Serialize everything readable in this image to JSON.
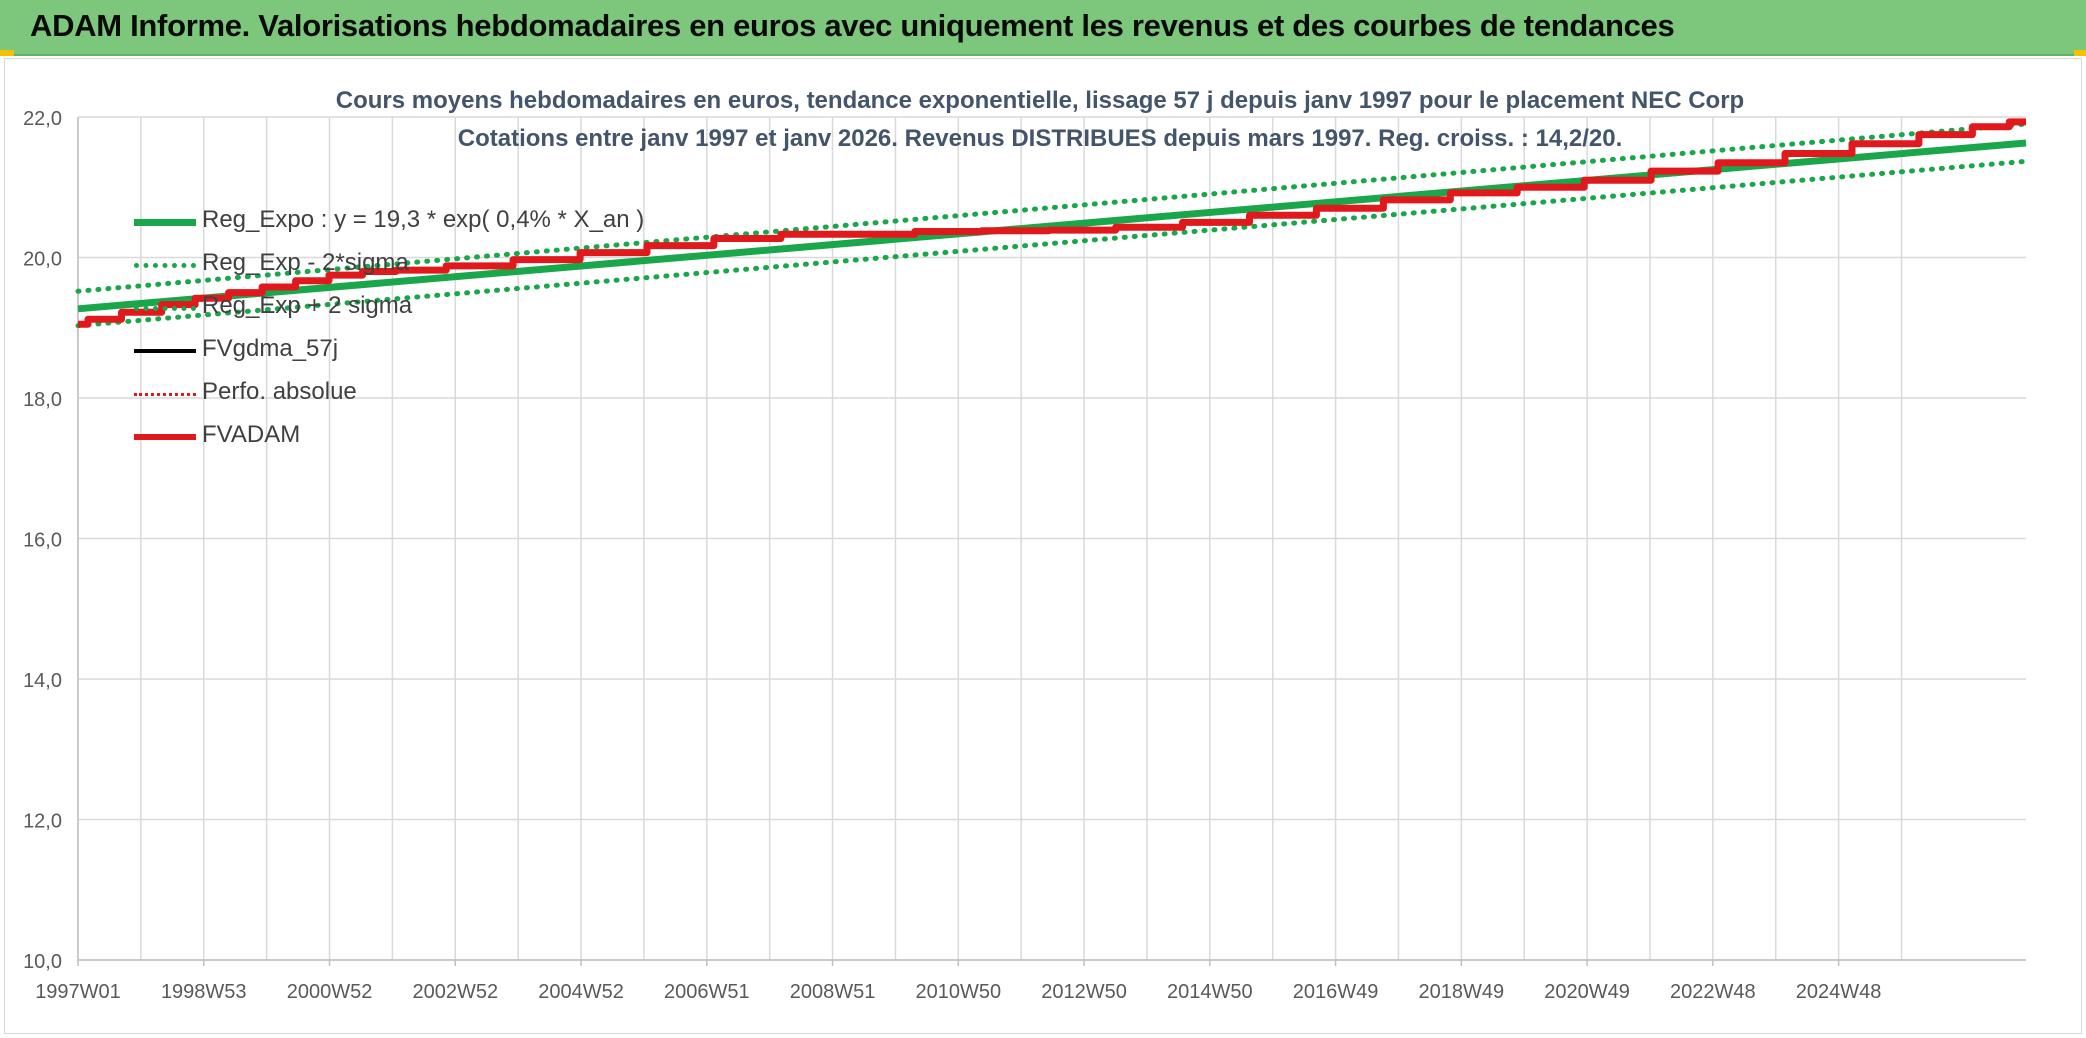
{
  "header": {
    "title": "ADAM Informe. Valorisations hebdomadaires en euros avec uniquement les revenus et des courbes de tendances"
  },
  "colors": {
    "header_bg": "#7dc77d",
    "reg_expo": "#1aa64a",
    "sigma": "#1aa64a",
    "fvgdma": "#000000",
    "perfo": "#e0191c",
    "fvadam": "#e0191c",
    "grid": "#d9d9d9",
    "title_text": "#44546a"
  },
  "chart_data": {
    "type": "line",
    "title": "Cours moyens hebdomadaires en euros, tendance exponentielle, lissage 57 j depuis janv 1997 pour le placement NEC Corp",
    "subtitle": "Cotations entre janv 1997 et janv 2026. Revenus DISTRIBUES depuis mars 1997. Reg. croiss. : 14,2/20.",
    "xlabel": "",
    "ylabel": "",
    "ylim": [
      10,
      22
    ],
    "y_ticks": [
      "10,0",
      "12,0",
      "14,0",
      "16,0",
      "18,0",
      "20,0",
      "22,0"
    ],
    "x_ticks": [
      "1997W01",
      "1998W53",
      "2000W52",
      "2002W52",
      "2004W52",
      "2006W51",
      "2008W51",
      "2010W50",
      "2012W50",
      "2014W50",
      "2016W49",
      "2018W49",
      "2020W49",
      "2022W48",
      "2024W48"
    ],
    "x_range": [
      1997.0,
      2026.1
    ],
    "grid": true,
    "legend_position": "top-left",
    "series": [
      {
        "name": "Reg_Expo : y = 19,3 * exp( 0,4% *  X_an )",
        "style": "solid-thick",
        "color": "#1aa64a",
        "x": [
          1997.0,
          2026.1
        ],
        "values": [
          19.27,
          21.63
        ]
      },
      {
        "name": "Reg_Exp - 2*sigma",
        "style": "dotted",
        "color": "#1aa64a",
        "x": [
          1997.0,
          2026.1
        ],
        "values": [
          19.03,
          21.37
        ]
      },
      {
        "name": "Reg_Exp + 2 sigma",
        "style": "dotted",
        "color": "#1aa64a",
        "x": [
          1997.0,
          2026.1
        ],
        "values": [
          19.52,
          21.9
        ]
      },
      {
        "name": "FVgdma_57j",
        "style": "solid",
        "color": "#000000",
        "x": [],
        "values": []
      },
      {
        "name": "Perfo. absolue",
        "style": "dotted",
        "color": "#e0191c",
        "x": [],
        "values": []
      },
      {
        "name": "FVADAM",
        "style": "solid-thick",
        "color": "#e0191c",
        "x": [
          1997.0,
          1997.3,
          1998.0,
          1998.5,
          1999.0,
          1999.5,
          2000.0,
          2000.5,
          2001.0,
          2001.5,
          2002.0,
          2003.0,
          2004.0,
          2005.0,
          2006.0,
          2007.0,
          2008.0,
          2009.0,
          2010.0,
          2011.0,
          2012.0,
          2013.0,
          2014.0,
          2015.0,
          2016.0,
          2017.0,
          2018.0,
          2019.0,
          2020.0,
          2021.0,
          2022.0,
          2023.0,
          2024.0,
          2025.0,
          2025.6,
          2026.1
        ],
        "values": [
          19.05,
          19.12,
          19.22,
          19.33,
          19.42,
          19.5,
          19.58,
          19.67,
          19.75,
          19.8,
          19.82,
          19.88,
          19.97,
          20.07,
          20.17,
          20.27,
          20.33,
          20.33,
          20.37,
          20.38,
          20.39,
          20.43,
          20.5,
          20.6,
          20.7,
          20.82,
          20.92,
          21.0,
          21.1,
          21.23,
          21.35,
          21.48,
          21.62,
          21.75,
          21.86,
          21.93
        ]
      }
    ]
  }
}
